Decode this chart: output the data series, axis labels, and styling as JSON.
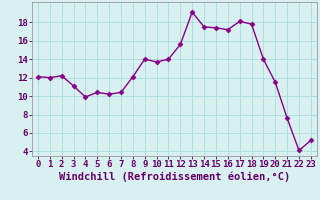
{
  "x": [
    0,
    1,
    2,
    3,
    4,
    5,
    6,
    7,
    8,
    9,
    10,
    11,
    12,
    13,
    14,
    15,
    16,
    17,
    18,
    19,
    20,
    21,
    22,
    23
  ],
  "y": [
    12.1,
    12.0,
    12.2,
    11.1,
    9.9,
    10.4,
    10.2,
    10.4,
    12.1,
    14.0,
    13.7,
    14.0,
    15.6,
    19.1,
    17.5,
    17.4,
    17.2,
    18.1,
    17.8,
    14.0,
    11.5,
    7.6,
    4.1,
    5.2
  ],
  "line_color": "#880088",
  "marker": "D",
  "markersize": 2.5,
  "linewidth": 1.0,
  "bg_color": "#d8f0f0",
  "grid_color": "#b0dede",
  "xlabel": "Windchill (Refroidissement éolien,°C)",
  "xlabel_fontsize": 7.5,
  "ylim": [
    3.5,
    20.2
  ],
  "yticks": [
    4,
    6,
    8,
    10,
    12,
    14,
    16,
    18
  ],
  "xticks": [
    0,
    1,
    2,
    3,
    4,
    5,
    6,
    7,
    8,
    9,
    10,
    11,
    12,
    13,
    14,
    15,
    16,
    17,
    18,
    19,
    20,
    21,
    22,
    23
  ],
  "tick_fontsize": 6.5,
  "axis_color": "#660066"
}
